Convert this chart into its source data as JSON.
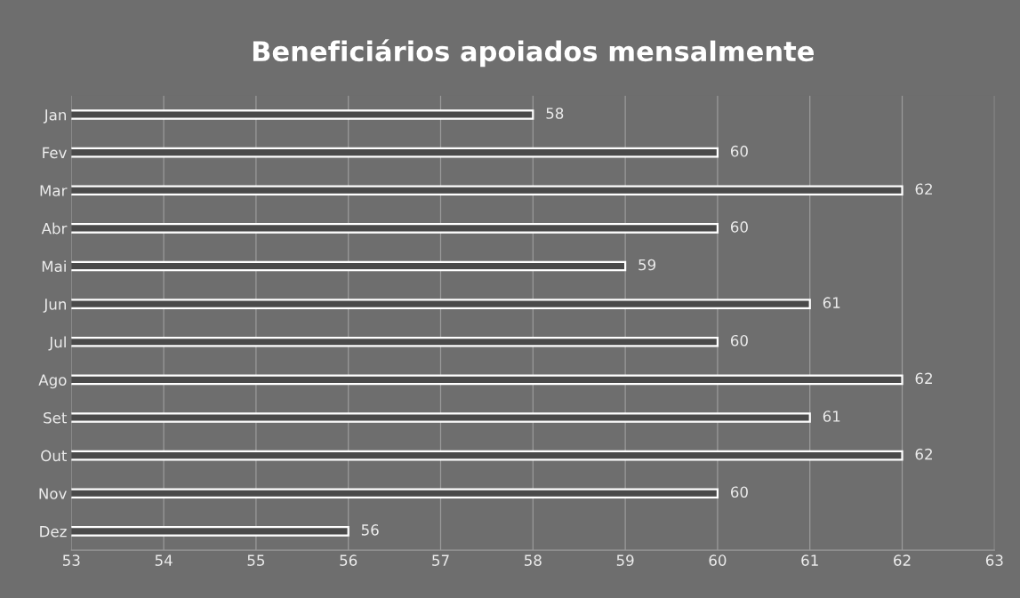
{
  "chart_data": {
    "type": "bar",
    "orientation": "horizontal",
    "title": "Beneficiários apoiados mensalmente",
    "categories": [
      "Jan",
      "Fev",
      "Mar",
      "Abr",
      "Mai",
      "Jun",
      "Jul",
      "Ago",
      "Set",
      "Out",
      "Nov",
      "Dez"
    ],
    "values": [
      58,
      60,
      62,
      60,
      59,
      61,
      60,
      62,
      61,
      62,
      60,
      56
    ],
    "color": "#4a4a4a",
    "xlim": [
      53,
      63
    ],
    "xticks": [
      53,
      54,
      55,
      56,
      57,
      58,
      59,
      60,
      61,
      62,
      63
    ],
    "grid": "x",
    "data_labels": true
  }
}
